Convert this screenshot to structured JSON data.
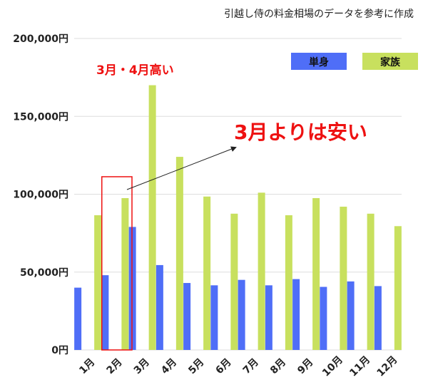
{
  "chart_data": {
    "type": "bar",
    "title": "引越し侍の料金相場のデータを参考に作成",
    "categories": [
      "1月",
      "2月",
      "3月",
      "4月",
      "5月",
      "6月",
      "7月",
      "8月",
      "9月",
      "10月",
      "11月",
      "12月"
    ],
    "series": [
      {
        "name": "単身",
        "color": "#4f6ef7",
        "values": [
          40000,
          48000,
          79000,
          54500,
          43000,
          41500,
          45000,
          41500,
          45500,
          40500,
          44000,
          41000
        ]
      },
      {
        "name": "家族",
        "color": "#c8e05e",
        "values": [
          86500,
          97500,
          170000,
          124000,
          98500,
          87500,
          101000,
          86500,
          97500,
          92000,
          87500,
          79500
        ]
      }
    ],
    "y_ticks": [
      "0円",
      "50,000円",
      "100,000円",
      "150,000円",
      "200,000円"
    ],
    "ylim": [
      0,
      200000
    ],
    "grid": true,
    "legend_position": "top-right",
    "annotations": {
      "highlight_label": "3月・4月高い",
      "arrow_label": "3月よりは安い",
      "highlight_category": "2月"
    },
    "colors": {
      "annotation": "#ee1111",
      "grid": "#dddddd"
    }
  }
}
